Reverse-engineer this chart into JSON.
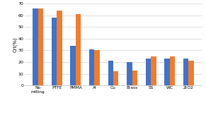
{
  "categories": [
    "No\nmilling",
    "PTFE",
    "PMMA",
    "Al",
    "Cu",
    "Brass",
    "SS",
    "WC",
    "ZrO2"
  ],
  "blue_values": [
    66,
    58,
    34,
    31,
    21,
    20,
    23,
    23,
    23
  ],
  "orange_values": [
    66,
    64,
    61,
    30,
    12,
    13,
    25,
    25,
    21
  ],
  "blue_color": "#4472C4",
  "orange_color": "#ED7D31",
  "ylabel": "CrI(%)",
  "ylim": [
    0,
    70
  ],
  "yticks": [
    0,
    10,
    20,
    30,
    40,
    50,
    60,
    70
  ],
  "background_color": "#ffffff",
  "grid_color": "#d9d9d9"
}
